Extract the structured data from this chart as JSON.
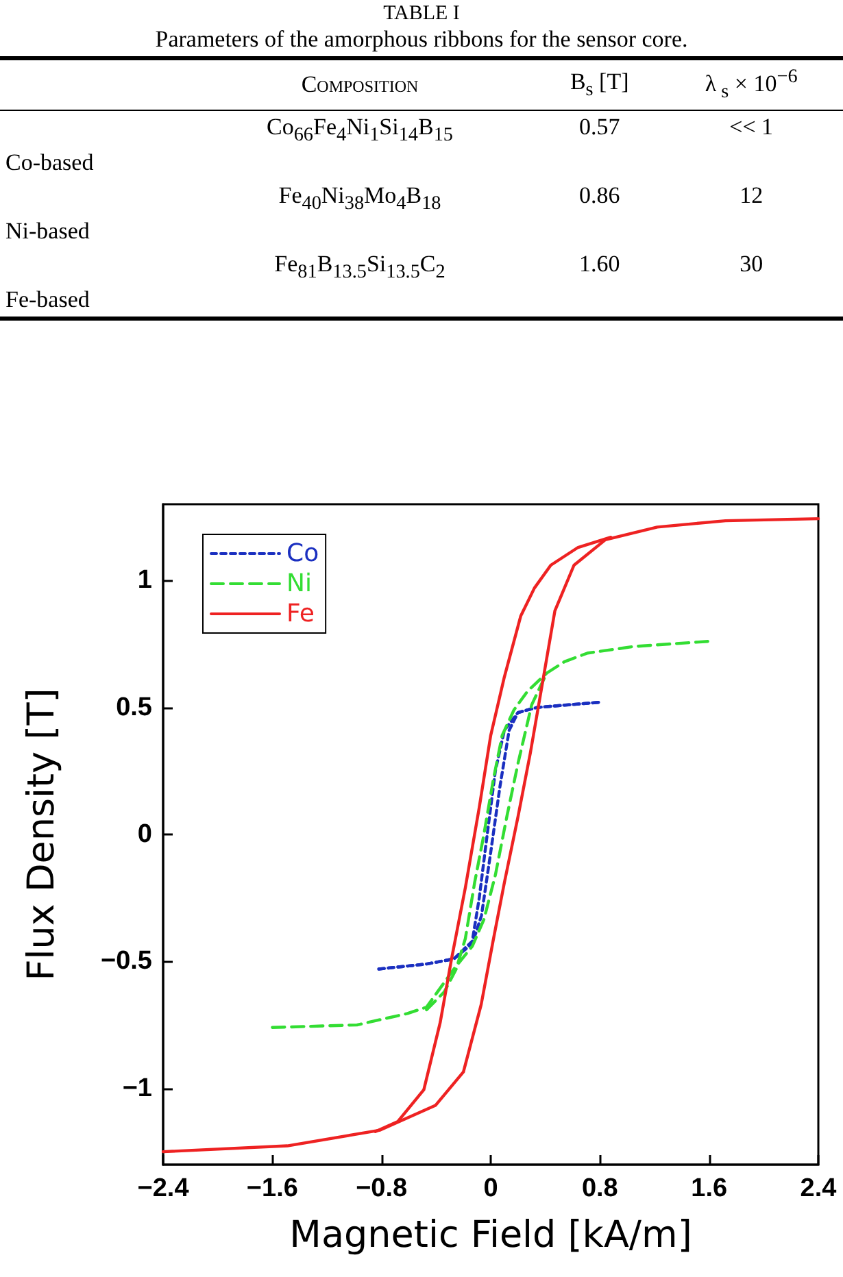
{
  "chart_data": [
    {
      "type": "other",
      "title": "TABLE I",
      "subtitle": "Parameters of the amorphous ribbons for the sensor core.",
      "categories": [
        null,
        "Composition",
        "B$_{s}$ [T]",
        "λ$_{ s}$ × 10$^{−6}$"
      ],
      "y_categories": [
        "Co-based",
        "Ni-based",
        "Fe-based"
      ],
      "cell_labels": [
        [
          "Co$_{66}$Fe$_{4}$Ni$_{1}$Si$_{14}$B$_{15}$",
          "0.57",
          "<< 1"
        ],
        [
          "Fe$_{40}$Ni$_{38}$Mo$_{4}$B$_{18}$",
          "0.86",
          "12"
        ],
        [
          "Fe$_{81}$B$_{13.5}$Si$_{13.5}$C$_{2}$",
          "1.60",
          "30"
        ]
      ]
    },
    {
      "type": "line",
      "xlabel": "Magnetic Field [kA/m]",
      "ylabel": "Flux Density [T]",
      "xlim": [
        -2.4,
        2.4
      ],
      "ylim": [
        -1.3,
        1.3
      ],
      "xticks": [
        {
          "value": -2.4,
          "label": "−2.4"
        },
        {
          "value": -1.6,
          "label": "−1.6"
        },
        {
          "value": -0.8,
          "label": "−0.8"
        },
        0,
        0.8,
        1.6,
        2.4
      ],
      "yticks": [
        {
          "value": -1,
          "label": "−1"
        },
        {
          "value": -0.5,
          "label": "−0.5"
        },
        0,
        0.5,
        1
      ],
      "legend": "top left",
      "grid": false,
      "marker": "none",
      "series": [
        {
          "name": "Co",
          "color": "#1a2fc0",
          "line_style": "dotted",
          "x": [
            -0.82,
            -0.47,
            -0.27,
            -0.135,
            -0.068,
            0,
            0.068,
            0.135,
            0.2,
            0.34,
            0.79
          ],
          "values": [
            -0.53,
            -0.51,
            -0.49,
            -0.43,
            -0.32,
            -0.07,
            0.19,
            0.41,
            0.48,
            0.5,
            0.52
          ]
        },
        {
          "color": "#1a2fc0",
          "line_style": "dotted",
          "x": [
            -0.82,
            -0.47,
            -0.27,
            -0.135,
            -0.084,
            -0.034,
            0.034,
            0.1,
            0.2,
            0.34,
            0.79
          ],
          "values": [
            -0.53,
            -0.51,
            -0.49,
            -0.42,
            -0.25,
            -0.035,
            0.25,
            0.41,
            0.48,
            0.5,
            0.52
          ]
        },
        {
          "name": "Ni",
          "color": "#33dd33",
          "line_style": "dashed",
          "x": [
            -1.6,
            -0.98,
            -0.61,
            -0.47,
            -0.39,
            -0.27,
            -0.135,
            -0.05,
            0.034,
            0.118,
            0.2,
            0.3,
            0.41,
            0.54,
            0.71,
            1.05,
            1.59
          ],
          "values": [
            -0.76,
            -0.75,
            -0.705,
            -0.68,
            -0.62,
            -0.53,
            -0.44,
            -0.335,
            -0.16,
            0.07,
            0.28,
            0.51,
            0.635,
            0.68,
            0.714,
            0.74,
            0.76
          ]
        },
        {
          "color": "#33dd33",
          "line_style": "dashed",
          "x": [
            -0.47,
            -0.34,
            -0.253,
            -0.186,
            -0.118,
            -0.05,
            0.017,
            0.084,
            0.17,
            0.27,
            0.41
          ],
          "values": [
            -0.69,
            -0.62,
            -0.53,
            -0.41,
            -0.19,
            0,
            0.21,
            0.39,
            0.49,
            0.564,
            0.635
          ]
        },
        {
          "name": "Fe",
          "color": "#ee2222",
          "line_style": "solid",
          "x": [
            -2.4,
            -1.49,
            -0.81,
            -0.405,
            -0.2,
            -0.07,
            0.017,
            0.1,
            0.2,
            0.29,
            0.39,
            0.47,
            0.61,
            0.84,
            1.22,
            1.72,
            2.4
          ],
          "values": [
            -1.249,
            -1.226,
            -1.164,
            -1.067,
            -0.935,
            -0.67,
            -0.42,
            -0.19,
            0.07,
            0.32,
            0.63,
            0.88,
            1.06,
            1.16,
            1.21,
            1.235,
            1.243
          ]
        },
        {
          "color": "#ee2222",
          "line_style": "solid",
          "x": [
            -0.845,
            -0.68,
            -0.49,
            -0.37,
            -0.287,
            -0.186,
            -0.084,
            0,
            0.1,
            0.22,
            0.32,
            0.44,
            0.64,
            0.88
          ],
          "values": [
            -1.17,
            -1.13,
            -1.005,
            -0.74,
            -0.49,
            -0.21,
            0.106,
            0.39,
            0.62,
            0.86,
            0.97,
            1.06,
            1.13,
            1.17
          ]
        }
      ]
    }
  ]
}
